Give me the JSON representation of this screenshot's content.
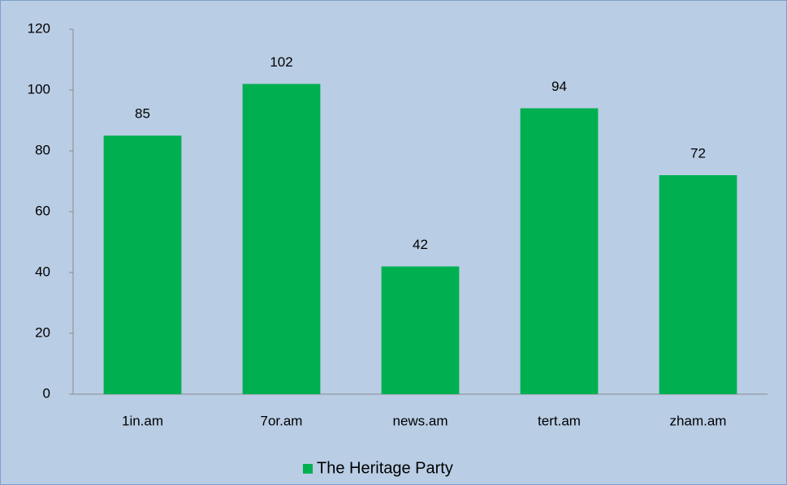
{
  "chart_data": {
    "type": "bar",
    "categories": [
      "1in.am",
      "7or.am",
      "news.am",
      "tert.am",
      "zham.am"
    ],
    "series": [
      {
        "name": "The Heritage Party",
        "color": "#00b050",
        "values": [
          85,
          102,
          42,
          94,
          72
        ]
      }
    ],
    "ylim": [
      0,
      120
    ],
    "yticks": [
      0,
      20,
      40,
      60,
      80,
      100,
      120
    ],
    "grid": false,
    "legend": "bottom",
    "data_labels": true
  }
}
